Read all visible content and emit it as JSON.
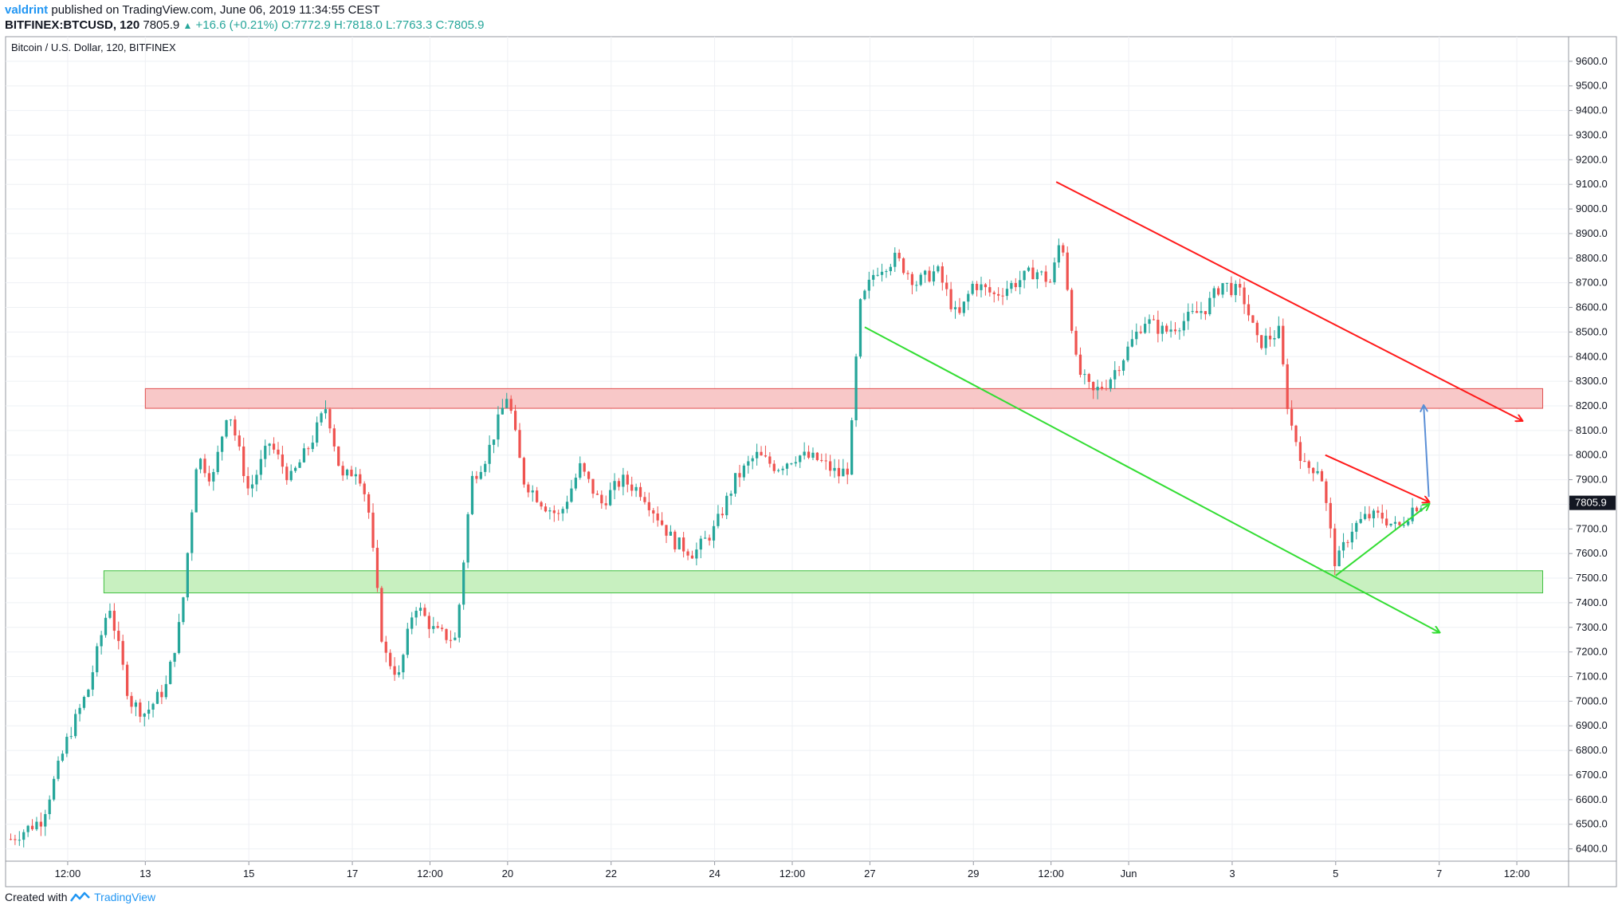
{
  "header": {
    "author": "valdrint",
    "published": "published on TradingView.com, June 06, 2019 11:34:55 CEST",
    "symbol_line": "BITFINEX:BTCUSD, 120",
    "last": "7805.9",
    "change": "+16.6 (+0.21%)",
    "ohlc": "O:7772.9 H:7818.0 L:7763.3 C:7805.9"
  },
  "footer": {
    "created_with": "Created with",
    "brand": "TradingView"
  },
  "colors": {
    "bull": "#26a69a",
    "bear": "#ef5350",
    "resistance_zone": "#f8c8c8",
    "support_zone": "#c8f0c0",
    "red_line": "#ff1a1a",
    "green_line": "#33dd33",
    "blue_arrow": "#5b8fd6",
    "grid": "#eef0f4"
  },
  "chart_data": {
    "type": "candlestick",
    "title": "Bitcoin / U.S. Dollar, 120, BITFINEX",
    "ylim": [
      6350,
      9700
    ],
    "y_ticks": [
      6400,
      6500,
      6600,
      6700,
      6800,
      6900,
      7000,
      7100,
      7200,
      7300,
      7400,
      7500,
      7600,
      7700,
      7800,
      7900,
      8000,
      8100,
      8200,
      8300,
      8400,
      8500,
      8600,
      8700,
      8800,
      8900,
      9000,
      9100,
      9200,
      9300,
      9400,
      9500,
      9600
    ],
    "x_ticks": [
      "12:00",
      "13",
      "15",
      "17",
      "12:00",
      "20",
      "22",
      "24",
      "12:00",
      "27",
      "29",
      "12:00",
      "Jun",
      "3",
      "5",
      "7",
      "12:00"
    ],
    "x_tick_days": [
      11.5,
      13,
      15,
      17,
      18.5,
      20,
      22,
      24,
      25.5,
      27,
      29,
      30.5,
      32,
      34,
      36,
      38,
      39.5
    ],
    "xlim": [
      10.3,
      40.5
    ],
    "last_price_label": "7805.9",
    "closes": [
      [
        10.4,
        6440
      ],
      [
        11.0,
        6520
      ],
      [
        11.5,
        6850
      ],
      [
        11.9,
        7050
      ],
      [
        12.3,
        7400
      ],
      [
        12.7,
        7000
      ],
      [
        13.0,
        6950
      ],
      [
        13.4,
        7060
      ],
      [
        13.7,
        7350
      ],
      [
        14.0,
        8000
      ],
      [
        14.3,
        7900
      ],
      [
        14.6,
        8200
      ],
      [
        15.0,
        7850
      ],
      [
        15.4,
        8050
      ],
      [
        15.8,
        7900
      ],
      [
        16.2,
        8050
      ],
      [
        16.5,
        8200
      ],
      [
        16.8,
        7900
      ],
      [
        17.1,
        7950
      ],
      [
        17.3,
        7800
      ],
      [
        17.6,
        7200
      ],
      [
        17.9,
        7100
      ],
      [
        18.2,
        7400
      ],
      [
        18.6,
        7280
      ],
      [
        19.0,
        7250
      ],
      [
        19.3,
        7900
      ],
      [
        19.6,
        8000
      ],
      [
        20.0,
        8250
      ],
      [
        20.3,
        7900
      ],
      [
        20.7,
        7800
      ],
      [
        21.0,
        7750
      ],
      [
        21.4,
        7950
      ],
      [
        21.8,
        7800
      ],
      [
        22.2,
        7900
      ],
      [
        22.6,
        7850
      ],
      [
        22.9,
        7750
      ],
      [
        23.2,
        7650
      ],
      [
        23.6,
        7600
      ],
      [
        24.0,
        7700
      ],
      [
        24.4,
        7900
      ],
      [
        24.8,
        8000
      ],
      [
        25.2,
        7950
      ],
      [
        25.6,
        8000
      ],
      [
        26.0,
        7980
      ],
      [
        26.4,
        7920
      ],
      [
        26.6,
        7950
      ],
      [
        26.8,
        8600
      ],
      [
        27.1,
        8750
      ],
      [
        27.5,
        8800
      ],
      [
        27.9,
        8700
      ],
      [
        28.3,
        8750
      ],
      [
        28.7,
        8550
      ],
      [
        29.0,
        8700
      ],
      [
        29.4,
        8650
      ],
      [
        29.8,
        8700
      ],
      [
        30.2,
        8750
      ],
      [
        30.5,
        8700
      ],
      [
        30.7,
        8900
      ],
      [
        31.0,
        8350
      ],
      [
        31.3,
        8250
      ],
      [
        31.6,
        8300
      ],
      [
        31.9,
        8400
      ],
      [
        32.3,
        8550
      ],
      [
        32.7,
        8500
      ],
      [
        33.1,
        8550
      ],
      [
        33.5,
        8600
      ],
      [
        33.8,
        8700
      ],
      [
        34.2,
        8650
      ],
      [
        34.5,
        8450
      ],
      [
        34.9,
        8500
      ],
      [
        35.1,
        8150
      ],
      [
        35.4,
        7950
      ],
      [
        35.7,
        7950
      ],
      [
        36.0,
        7550
      ],
      [
        36.3,
        7700
      ],
      [
        36.6,
        7750
      ],
      [
        36.9,
        7750
      ],
      [
        37.2,
        7700
      ],
      [
        37.5,
        7790
      ],
      [
        37.7,
        7805.9
      ]
    ],
    "annotations": {
      "resistance_zone": {
        "x": [
          13.0,
          40.0
        ],
        "y": [
          8190,
          8270
        ]
      },
      "support_zone": {
        "x": [
          12.2,
          40.0
        ],
        "y": [
          7440,
          7530
        ]
      },
      "red_trendline_main": {
        "from": [
          30.6,
          9110
        ],
        "to": [
          39.6,
          8140
        ]
      },
      "green_trendline_main": {
        "from": [
          26.9,
          8520
        ],
        "to": [
          38.0,
          7280
        ]
      },
      "red_triangle_top": {
        "from": [
          35.8,
          8000
        ],
        "to": [
          37.8,
          7810
        ]
      },
      "green_triangle_bottom": {
        "from": [
          36.0,
          7510
        ],
        "to": [
          37.8,
          7800
        ]
      },
      "blue_arrow": {
        "from": [
          37.8,
          7830
        ],
        "to": [
          37.7,
          8200
        ]
      }
    }
  }
}
